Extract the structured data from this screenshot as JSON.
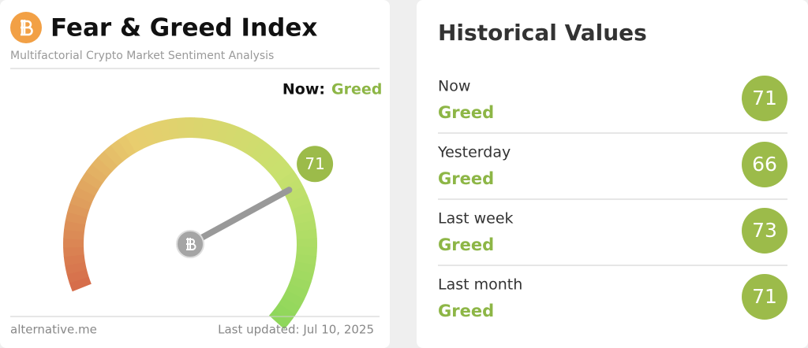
{
  "left": {
    "title": "Fear & Greed Index",
    "subtitle": "Multifactorial Crypto Market Sentiment Analysis",
    "now_label": "Now:",
    "now_class": "Greed",
    "value": 71,
    "gauge_range": [
      0,
      100
    ],
    "source": "alternative.me",
    "updated": "Last updated: Jul 10, 2025"
  },
  "history": {
    "title": "Historical Values",
    "rows": [
      {
        "period": "Now",
        "class": "Greed",
        "value": 71
      },
      {
        "period": "Yesterday",
        "class": "Greed",
        "value": 66
      },
      {
        "period": "Last week",
        "class": "Greed",
        "value": 73
      },
      {
        "period": "Last month",
        "class": "Greed",
        "value": 71
      }
    ]
  }
}
